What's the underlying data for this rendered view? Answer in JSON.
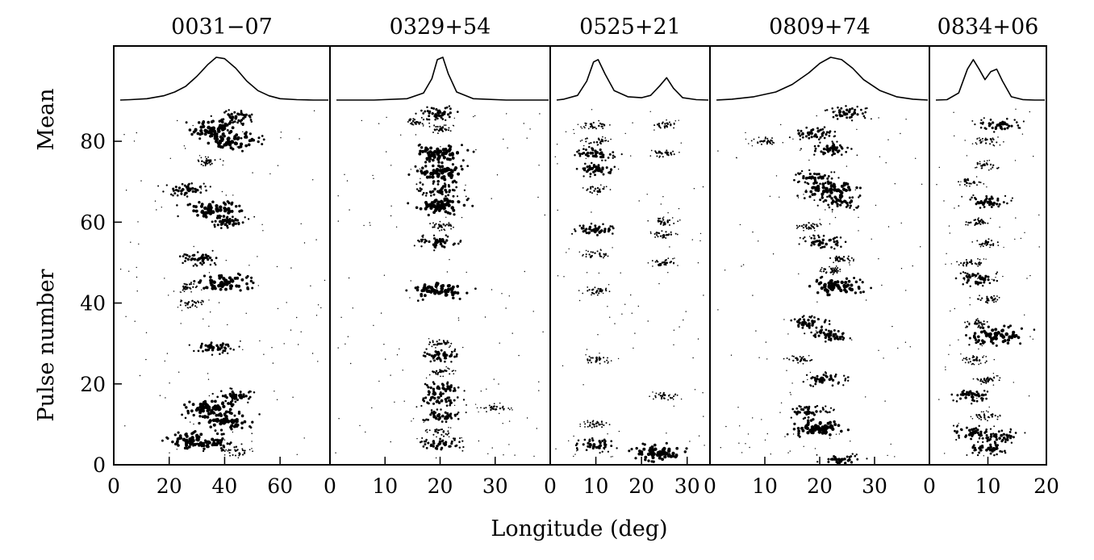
{
  "chart_data": {
    "type": "scatter",
    "title": "",
    "xlabel": "Longitude (deg)",
    "ylabel": "Pulse number",
    "ylabel_top": "Mean",
    "ylim": [
      0,
      88
    ],
    "yticks": [
      0,
      20,
      40,
      60,
      80
    ],
    "grid": false,
    "panels": [
      {
        "name": "0031−07",
        "xlim": [
          0,
          78
        ],
        "xticks": [
          0,
          20,
          40,
          60
        ],
        "mean_profile": {
          "x": [
            0,
            6,
            12,
            18,
            22,
            26,
            30,
            34,
            37,
            40,
            44,
            48,
            52,
            56,
            60,
            66,
            72,
            78
          ],
          "y": [
            0.05,
            0.06,
            0.08,
            0.14,
            0.22,
            0.34,
            0.55,
            0.8,
            0.95,
            0.92,
            0.72,
            0.45,
            0.25,
            0.14,
            0.08,
            0.06,
            0.05,
            0.05
          ]
        },
        "subpulses": [
          {
            "x": 44,
            "y": 86,
            "s": 2
          },
          {
            "x": 36,
            "y": 83,
            "s": 3
          },
          {
            "x": 42,
            "y": 80,
            "s": 3
          },
          {
            "x": 34,
            "y": 75,
            "s": 1
          },
          {
            "x": 26,
            "y": 68,
            "s": 2
          },
          {
            "x": 36,
            "y": 63,
            "s": 3
          },
          {
            "x": 41,
            "y": 60,
            "s": 2
          },
          {
            "x": 31,
            "y": 51,
            "s": 2
          },
          {
            "x": 40,
            "y": 45,
            "s": 3
          },
          {
            "x": 26,
            "y": 44,
            "s": 1
          },
          {
            "x": 28,
            "y": 40,
            "s": 1
          },
          {
            "x": 36,
            "y": 29,
            "s": 2
          },
          {
            "x": 44,
            "y": 17,
            "s": 2
          },
          {
            "x": 35,
            "y": 14,
            "s": 3
          },
          {
            "x": 40,
            "y": 11,
            "s": 3
          },
          {
            "x": 30,
            "y": 6,
            "s": 3
          },
          {
            "x": 36,
            "y": 5,
            "s": 2
          },
          {
            "x": 45,
            "y": 3,
            "s": 1
          }
        ]
      },
      {
        "name": "0329+54",
        "xlim": [
          0,
          40
        ],
        "xticks": [
          0,
          10,
          20,
          30
        ],
        "mean_profile": {
          "x": [
            0,
            8,
            14,
            17,
            18.5,
            19.5,
            20.5,
            21.5,
            23,
            26,
            32,
            40
          ],
          "y": [
            0.05,
            0.05,
            0.08,
            0.2,
            0.5,
            0.9,
            0.95,
            0.6,
            0.22,
            0.08,
            0.05,
            0.05
          ]
        },
        "subpulses": [
          {
            "x": 20,
            "y": 87,
            "s": 2
          },
          {
            "x": 16,
            "y": 85,
            "s": 1
          },
          {
            "x": 20,
            "y": 83,
            "s": 1
          },
          {
            "x": 20,
            "y": 77,
            "s": 3
          },
          {
            "x": 20,
            "y": 72,
            "s": 3
          },
          {
            "x": 20,
            "y": 68,
            "s": 2
          },
          {
            "x": 20,
            "y": 64,
            "s": 3
          },
          {
            "x": 20,
            "y": 59,
            "s": 1
          },
          {
            "x": 20,
            "y": 55,
            "s": 2
          },
          {
            "x": 20,
            "y": 43,
            "s": 3
          },
          {
            "x": 20,
            "y": 30,
            "s": 1
          },
          {
            "x": 20,
            "y": 27,
            "s": 2
          },
          {
            "x": 20,
            "y": 23,
            "s": 1
          },
          {
            "x": 20,
            "y": 19,
            "s": 2
          },
          {
            "x": 20,
            "y": 16,
            "s": 2
          },
          {
            "x": 20,
            "y": 12,
            "s": 2
          },
          {
            "x": 30,
            "y": 14,
            "s": 1
          },
          {
            "x": 20,
            "y": 8,
            "s": 1
          },
          {
            "x": 20,
            "y": 5,
            "s": 2
          }
        ]
      },
      {
        "name": "0525+21",
        "xlim": [
          0,
          35
        ],
        "xticks": [
          0,
          10,
          20,
          30
        ],
        "mean_profile": {
          "x": [
            0,
            3,
            6,
            8,
            9.5,
            10.5,
            12,
            14,
            17,
            20,
            22,
            24,
            25.5,
            27,
            29,
            32,
            35
          ],
          "y": [
            0.05,
            0.07,
            0.15,
            0.45,
            0.85,
            0.9,
            0.6,
            0.25,
            0.12,
            0.1,
            0.15,
            0.35,
            0.52,
            0.3,
            0.1,
            0.06,
            0.05
          ]
        },
        "subpulses": [
          {
            "x": 10,
            "y": 84,
            "s": 1
          },
          {
            "x": 10,
            "y": 80,
            "s": 1
          },
          {
            "x": 10,
            "y": 77,
            "s": 2
          },
          {
            "x": 10,
            "y": 73,
            "s": 2
          },
          {
            "x": 10,
            "y": 68,
            "s": 1
          },
          {
            "x": 10,
            "y": 58,
            "s": 2
          },
          {
            "x": 10,
            "y": 52,
            "s": 1
          },
          {
            "x": 10,
            "y": 43,
            "s": 1
          },
          {
            "x": 10,
            "y": 26,
            "s": 1
          },
          {
            "x": 10,
            "y": 10,
            "s": 1
          },
          {
            "x": 10,
            "y": 5,
            "s": 2
          },
          {
            "x": 25,
            "y": 84,
            "s": 1
          },
          {
            "x": 25,
            "y": 77,
            "s": 1
          },
          {
            "x": 25,
            "y": 60,
            "s": 1
          },
          {
            "x": 25,
            "y": 57,
            "s": 1
          },
          {
            "x": 25,
            "y": 50,
            "s": 1
          },
          {
            "x": 25,
            "y": 17,
            "s": 1
          },
          {
            "x": 24,
            "y": 3,
            "s": 3
          }
        ]
      },
      {
        "name": "0809+74",
        "xlim": [
          0,
          40
        ],
        "xticks": [
          0,
          10,
          20,
          30
        ],
        "mean_profile": {
          "x": [
            0,
            4,
            8,
            12,
            15,
            18,
            20,
            22,
            24,
            26,
            28,
            31,
            34,
            37,
            40
          ],
          "y": [
            0.05,
            0.07,
            0.12,
            0.22,
            0.38,
            0.62,
            0.82,
            0.95,
            0.9,
            0.72,
            0.48,
            0.25,
            0.12,
            0.07,
            0.05
          ]
        },
        "subpulses": [
          {
            "x": 25,
            "y": 87,
            "s": 2
          },
          {
            "x": 19,
            "y": 82,
            "s": 2
          },
          {
            "x": 22,
            "y": 78,
            "s": 2
          },
          {
            "x": 10,
            "y": 80,
            "s": 1
          },
          {
            "x": 19,
            "y": 71,
            "s": 2
          },
          {
            "x": 22,
            "y": 68,
            "s": 3
          },
          {
            "x": 24,
            "y": 65,
            "s": 2
          },
          {
            "x": 18,
            "y": 59,
            "s": 1
          },
          {
            "x": 21,
            "y": 55,
            "s": 2
          },
          {
            "x": 24,
            "y": 51,
            "s": 1
          },
          {
            "x": 22,
            "y": 48,
            "s": 1
          },
          {
            "x": 23,
            "y": 44,
            "s": 3
          },
          {
            "x": 18,
            "y": 35,
            "s": 2
          },
          {
            "x": 22,
            "y": 32,
            "s": 2
          },
          {
            "x": 16,
            "y": 26,
            "s": 1
          },
          {
            "x": 21,
            "y": 21,
            "s": 2
          },
          {
            "x": 18,
            "y": 13,
            "s": 2
          },
          {
            "x": 20,
            "y": 9,
            "s": 3
          },
          {
            "x": 24,
            "y": 1,
            "s": 2
          }
        ]
      },
      {
        "name": "0834+06",
        "xlim": [
          0,
          20
        ],
        "xticks": [
          0,
          10,
          20
        ],
        "mean_profile": {
          "x": [
            0,
            3,
            5,
            6.5,
            7.5,
            8.5,
            9.5,
            10.5,
            11.5,
            12.5,
            14,
            16,
            18,
            20
          ],
          "y": [
            0.05,
            0.06,
            0.2,
            0.7,
            0.9,
            0.7,
            0.48,
            0.65,
            0.7,
            0.45,
            0.12,
            0.06,
            0.05,
            0.05
          ]
        },
        "subpulses": [
          {
            "x": 12,
            "y": 84,
            "s": 2
          },
          {
            "x": 10,
            "y": 80,
            "s": 1
          },
          {
            "x": 10,
            "y": 74,
            "s": 1
          },
          {
            "x": 7,
            "y": 70,
            "s": 1
          },
          {
            "x": 10,
            "y": 65,
            "s": 2
          },
          {
            "x": 8,
            "y": 60,
            "s": 1
          },
          {
            "x": 10,
            "y": 55,
            "s": 1
          },
          {
            "x": 7,
            "y": 50,
            "s": 1
          },
          {
            "x": 8,
            "y": 46,
            "s": 2
          },
          {
            "x": 10,
            "y": 41,
            "s": 1
          },
          {
            "x": 8,
            "y": 35,
            "s": 1
          },
          {
            "x": 12,
            "y": 32,
            "s": 3
          },
          {
            "x": 8,
            "y": 26,
            "s": 1
          },
          {
            "x": 10,
            "y": 21,
            "s": 1
          },
          {
            "x": 7,
            "y": 17,
            "s": 2
          },
          {
            "x": 10,
            "y": 12,
            "s": 1
          },
          {
            "x": 7,
            "y": 8,
            "s": 2
          },
          {
            "x": 12,
            "y": 7,
            "s": 2
          },
          {
            "x": 10,
            "y": 4,
            "s": 2
          }
        ]
      }
    ]
  }
}
